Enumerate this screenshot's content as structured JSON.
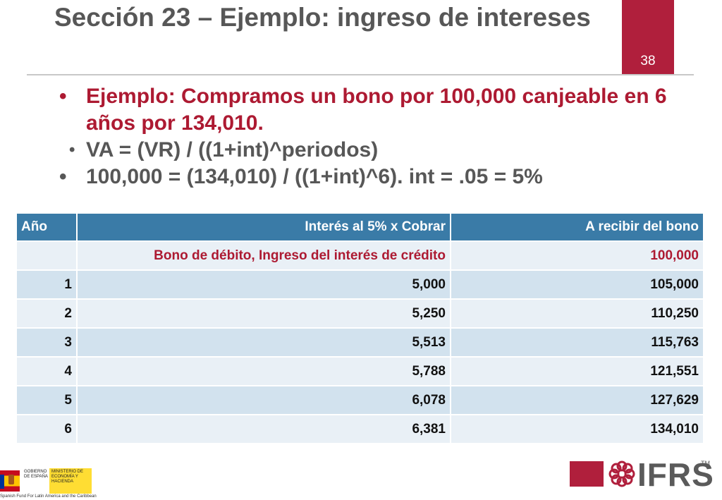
{
  "slide": {
    "title": "Sección 23 – Ejemplo: ingreso de intereses",
    "page_number": "38"
  },
  "bullets": [
    {
      "text": "Ejemplo:   Compramos un bono por 100,000 canjeable en 6 años por 134,010."
    },
    {
      "text": "VA = (VR) / ((1+int)^periodos)"
    },
    {
      "text": "100,000 = (134,010) / ((1+int)^6).  int = .05 = 5%"
    }
  ],
  "table": {
    "headers": [
      "Año",
      "Interés al 5% x Cobrar",
      "A recibir del bono"
    ],
    "subheader": {
      "label": "Bono de débito, Ingreso del interés de crédito",
      "value": "100,000"
    },
    "rows": [
      [
        "1",
        "5,000",
        "105,000"
      ],
      [
        "2",
        "5,250",
        "110,250"
      ],
      [
        "3",
        "5,513",
        "115,763"
      ],
      [
        "4",
        "5,788",
        "121,551"
      ],
      [
        "5",
        "6,078",
        "127,629"
      ],
      [
        "6",
        "6,381",
        "134,010"
      ]
    ]
  },
  "footer": {
    "gov_text_1": "GOBIERNO DE ESPAÑA",
    "gov_text_2": "MINISTERIO DE ECONOMÍA Y HACIENDA",
    "fund_text": "Spanish Fund For Latin America and the Caribbean",
    "ifrs_text": "IFRS",
    "ifrs_tm": "TM"
  },
  "colors": {
    "accent": "#b01f3c",
    "table_header": "#3a7ba7",
    "row_dark": "#d2e2ee",
    "row_light": "#e9f0f6"
  },
  "icons": {
    "flower": "ifrs-flower-icon",
    "flag": "spain-flag-icon"
  }
}
